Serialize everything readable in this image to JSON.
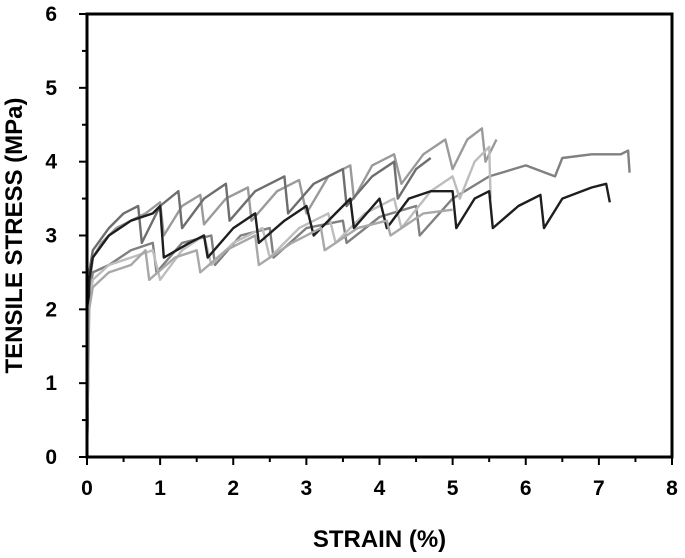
{
  "chart_data": {
    "type": "line",
    "title": "",
    "xlabel": "STRAIN (%)",
    "ylabel": "TENSILE STRESS (MPa)",
    "xlim": [
      0,
      8
    ],
    "ylim": [
      0,
      6
    ],
    "x_ticks": [
      0,
      1,
      2,
      3,
      4,
      5,
      6,
      7,
      8
    ],
    "y_ticks": [
      0,
      1,
      2,
      3,
      4,
      5,
      6
    ],
    "grid": false,
    "legend": "none",
    "series": [
      {
        "color": "#9a9a9a",
        "x": [
          0,
          0.03,
          0.08,
          0.2,
          0.4,
          0.6,
          0.8,
          1.0,
          1.05,
          1.3,
          1.55,
          1.6,
          1.9,
          2.2,
          2.25,
          2.6,
          2.9,
          3.0,
          3.3,
          3.6,
          3.65,
          3.9,
          4.2,
          4.3,
          4.6,
          4.9,
          5.0,
          5.2,
          5.4,
          5.45,
          5.6
        ],
        "y": [
          0,
          2.3,
          2.7,
          2.9,
          3.1,
          3.2,
          3.3,
          3.45,
          3.0,
          3.4,
          3.55,
          3.15,
          3.5,
          3.65,
          3.2,
          3.6,
          3.75,
          3.3,
          3.8,
          3.95,
          3.5,
          3.95,
          4.1,
          3.7,
          4.1,
          4.3,
          3.9,
          4.3,
          4.45,
          4.0,
          4.3
        ]
      },
      {
        "color": "#808080",
        "x": [
          0,
          0.03,
          0.08,
          0.3,
          0.6,
          0.9,
          0.95,
          1.3,
          1.7,
          1.75,
          2.1,
          2.5,
          2.55,
          3.0,
          3.5,
          3.55,
          4.0,
          4.5,
          4.55,
          5.0,
          5.5,
          6.0,
          6.4,
          6.5,
          6.9,
          7.3,
          7.4,
          7.42
        ],
        "y": [
          0,
          2.2,
          2.5,
          2.6,
          2.8,
          2.9,
          2.5,
          2.9,
          3.0,
          2.6,
          3.0,
          3.1,
          2.7,
          3.1,
          3.2,
          2.9,
          3.25,
          3.4,
          3.0,
          3.5,
          3.8,
          3.95,
          3.8,
          4.05,
          4.1,
          4.1,
          4.15,
          3.85
        ]
      },
      {
        "color": "#bdbdbd",
        "x": [
          0,
          0.03,
          0.08,
          0.3,
          0.6,
          0.9,
          1.0,
          1.3,
          1.6,
          1.7,
          2.0,
          2.4,
          2.5,
          2.9,
          3.3,
          3.4,
          3.8,
          4.2,
          4.3,
          4.7,
          5.0,
          5.1,
          5.3,
          5.5,
          5.52
        ],
        "y": [
          0,
          2.1,
          2.4,
          2.6,
          2.7,
          2.8,
          2.4,
          2.8,
          3.0,
          2.6,
          2.9,
          3.1,
          2.7,
          3.1,
          3.3,
          2.9,
          3.3,
          3.5,
          3.1,
          3.6,
          3.8,
          3.5,
          4.0,
          4.2,
          3.5
        ]
      },
      {
        "color": "#6e6e6e",
        "x": [
          0,
          0.03,
          0.08,
          0.3,
          0.5,
          0.7,
          0.75,
          1.0,
          1.25,
          1.3,
          1.6,
          1.9,
          1.95,
          2.3,
          2.7,
          2.75,
          3.1,
          3.5,
          3.55,
          3.9,
          4.2,
          4.25,
          4.5,
          4.7
        ],
        "y": [
          0,
          2.5,
          2.8,
          3.1,
          3.3,
          3.4,
          2.9,
          3.4,
          3.6,
          3.1,
          3.5,
          3.7,
          3.2,
          3.6,
          3.8,
          3.3,
          3.7,
          3.9,
          3.4,
          3.8,
          4.0,
          3.5,
          3.9,
          4.05
        ]
      },
      {
        "color": "#1e1e1e",
        "x": [
          0,
          0.03,
          0.08,
          0.3,
          0.6,
          0.9,
          1.0,
          1.05,
          1.4,
          1.6,
          1.65,
          2.0,
          2.3,
          2.35,
          2.7,
          3.0,
          3.1,
          3.4,
          3.6,
          3.65,
          4.0,
          4.1,
          4.4,
          4.7,
          5.0,
          5.05,
          5.3,
          5.5,
          5.55,
          5.9,
          6.2,
          6.25,
          6.5,
          6.9,
          7.1,
          7.15
        ],
        "y": [
          0,
          2.4,
          2.7,
          3.0,
          3.2,
          3.3,
          3.4,
          2.7,
          2.9,
          3.0,
          2.7,
          3.1,
          3.3,
          2.9,
          3.2,
          3.4,
          3.0,
          3.3,
          3.5,
          3.1,
          3.5,
          3.1,
          3.5,
          3.6,
          3.6,
          3.1,
          3.5,
          3.6,
          3.1,
          3.4,
          3.55,
          3.1,
          3.5,
          3.65,
          3.7,
          3.45
        ]
      },
      {
        "color": "#a8a8a8",
        "x": [
          0,
          0.03,
          0.08,
          0.3,
          0.6,
          0.8,
          0.85,
          1.2,
          1.5,
          1.55,
          1.9,
          2.3,
          2.35,
          2.8,
          3.2,
          3.25,
          3.7,
          4.1,
          4.15,
          4.6,
          5.0
        ],
        "y": [
          0,
          2.0,
          2.3,
          2.5,
          2.6,
          2.8,
          2.4,
          2.7,
          2.8,
          2.5,
          2.8,
          3.0,
          2.6,
          2.9,
          3.1,
          2.8,
          3.1,
          3.2,
          3.0,
          3.3,
          3.35
        ]
      }
    ]
  }
}
